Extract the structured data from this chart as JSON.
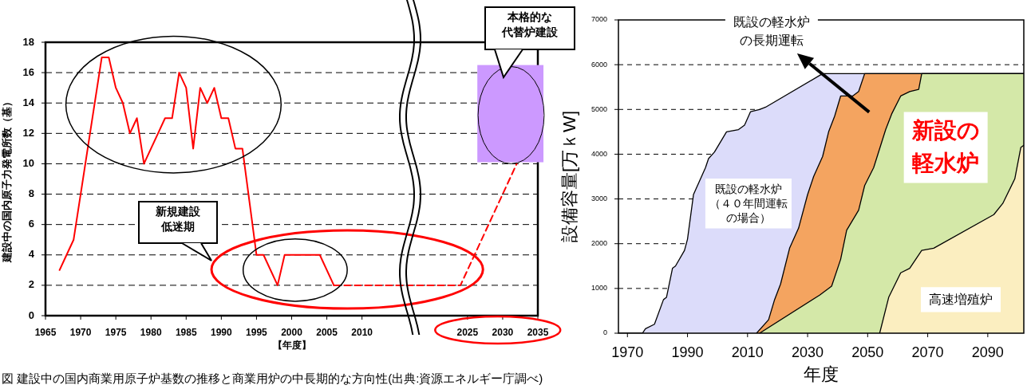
{
  "chart_data": [
    {
      "type": "line",
      "xlabel": "【年度】",
      "ylabel": "建設中の国内原子力発電所数（基）",
      "xlim": [
        1965,
        2035
      ],
      "xticks": [
        1965,
        1970,
        1975,
        1980,
        1985,
        1990,
        1995,
        2000,
        2005,
        2010,
        2025,
        2030,
        2035
      ],
      "ylim": [
        0,
        18
      ],
      "yticks": [
        0,
        2,
        4,
        6,
        8,
        10,
        12,
        14,
        16,
        18
      ],
      "grid": "y",
      "marker": "none",
      "series": [
        {
          "color": "#ff0000",
          "line_style": "solid",
          "x": [
            1967,
            1968,
            1969,
            1970,
            1971,
            1972,
            1973,
            1974,
            1975,
            1976,
            1977,
            1978,
            1979,
            1980,
            1981,
            1982,
            1983,
            1984,
            1985,
            1986,
            1987,
            1988,
            1989,
            1990,
            1991,
            1992,
            1993,
            1995,
            1996,
            1998,
            1999,
            2000,
            2001,
            2002,
            2003,
            2004,
            2006
          ],
          "values": [
            3,
            4,
            5,
            8,
            11,
            14,
            17,
            17,
            15,
            14,
            12,
            13,
            10,
            11,
            12,
            13,
            13,
            16,
            15,
            11,
            15,
            14,
            15,
            13,
            13,
            11,
            11,
            4,
            4,
            2,
            4,
            4,
            4,
            4,
            4,
            4,
            2
          ]
        },
        {
          "color": "#ff0000",
          "line_style": "dashed",
          "x": [
            2006,
            2024,
            2032
          ],
          "values": [
            2,
            2,
            10
          ]
        }
      ],
      "annotations": [
        "新規建設低迷期",
        "本格的な代替炉建設",
        "図  建設中の国内商業用原子炉基数の推移と商業用炉の中長期的な方向性(出典:資源エネルギー庁調べ)"
      ]
    },
    {
      "type": "area",
      "xlabel": "年度",
      "ylabel": "設備容量[万ｋW]",
      "xlim": [
        1967,
        2102
      ],
      "xticks": [
        1970,
        1990,
        2010,
        2030,
        2050,
        2070,
        2090
      ],
      "ylim": [
        0,
        7000
      ],
      "yticks": [
        0,
        1000,
        2000,
        3000,
        4000,
        5000,
        6000,
        7000
      ],
      "grid": "y",
      "series": [
        {
          "color": "#dcdcfa",
          "x": [
            1967,
            1975,
            1976,
            1979,
            1982,
            1983,
            1985,
            1986,
            1989,
            1990,
            1992,
            1996,
            1997,
            1999,
            2003,
            2007,
            2009,
            2011,
            2014,
            2016,
            2035,
            2102
          ],
          "values": [
            0,
            0,
            100,
            200,
            750,
            800,
            1450,
            1500,
            1850,
            2100,
            3100,
            3700,
            3900,
            4050,
            4500,
            4550,
            4650,
            4950,
            5000,
            5050,
            5800,
            5800
          ]
        },
        {
          "color": "#f4a460",
          "x": [
            2013,
            2017,
            2019,
            2021,
            2024,
            2027,
            2030,
            2032,
            2035,
            2037,
            2039,
            2041,
            2045,
            2047,
            2049,
            2102
          ],
          "values": [
            0,
            300,
            750,
            1100,
            1900,
            2350,
            3100,
            3500,
            3950,
            4500,
            4850,
            5300,
            5300,
            5400,
            5800,
            5800
          ]
        },
        {
          "color": "#d4e8a8",
          "x": [
            2014,
            2034,
            2038,
            2041,
            2043,
            2047,
            2049,
            2052,
            2056,
            2058,
            2061,
            2064,
            2067,
            2068,
            2102
          ],
          "values": [
            0,
            850,
            1050,
            1650,
            2300,
            2750,
            3300,
            3700,
            4550,
            4900,
            5300,
            5400,
            5450,
            5800,
            5800
          ]
        },
        {
          "color": "#fbeec0",
          "x": [
            2054,
            2057,
            2061,
            2064,
            2068,
            2072,
            2092,
            2095,
            2099,
            2101,
            2102
          ],
          "values": [
            0,
            800,
            1350,
            1450,
            1850,
            1900,
            2650,
            2900,
            3450,
            4150,
            4200
          ]
        }
      ],
      "annotations": [
        "既設の軽水炉の長期運転",
        "既設の軽水炉（４０年間運転の場合）",
        "新設の軽水炉",
        "高速増殖炉"
      ]
    }
  ]
}
